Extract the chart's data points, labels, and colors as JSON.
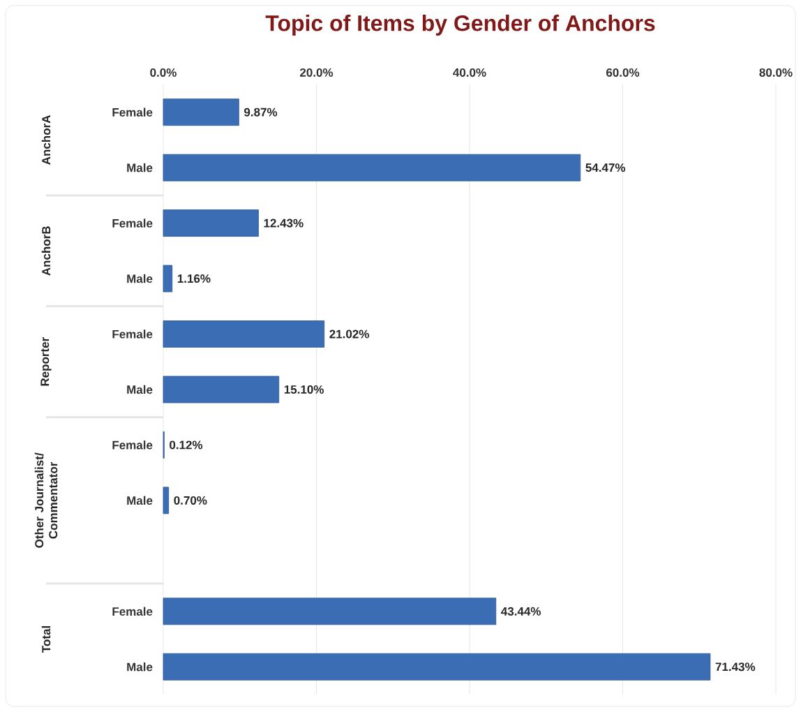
{
  "chart_data": {
    "type": "bar",
    "orientation": "horizontal",
    "title": "Topic of Items by Gender of Anchors",
    "categories": [
      "Female",
      "Male",
      "Female",
      "Male",
      "Female",
      "Male",
      "Female",
      "Male",
      null,
      "Female",
      "Male"
    ],
    "values": [
      9.87,
      54.47,
      12.43,
      1.16,
      21.02,
      15.1,
      0.12,
      0.7,
      null,
      43.44,
      71.43
    ],
    "value_labels": [
      "9.87%",
      "54.47%",
      "12.43%",
      "1.16%",
      "21.02%",
      "15.10%",
      "0.12%",
      "0.70%",
      null,
      "43.44%",
      "71.43%"
    ],
    "color": "#3b6db5",
    "xlim": [
      0,
      80
    ],
    "xticks": [
      {
        "value": 0,
        "label": "0.0%"
      },
      {
        "value": 20,
        "label": "20.0%"
      },
      {
        "value": 40,
        "label": "40.0%"
      },
      {
        "value": 60,
        "label": "60.0%"
      },
      {
        "value": 80,
        "label": "80.0%"
      }
    ],
    "grid": "x",
    "annotations": [
      "AnchorA",
      "AnchorB",
      "Reporter",
      "Other Journalist/ Commentator",
      "Total"
    ]
  }
}
